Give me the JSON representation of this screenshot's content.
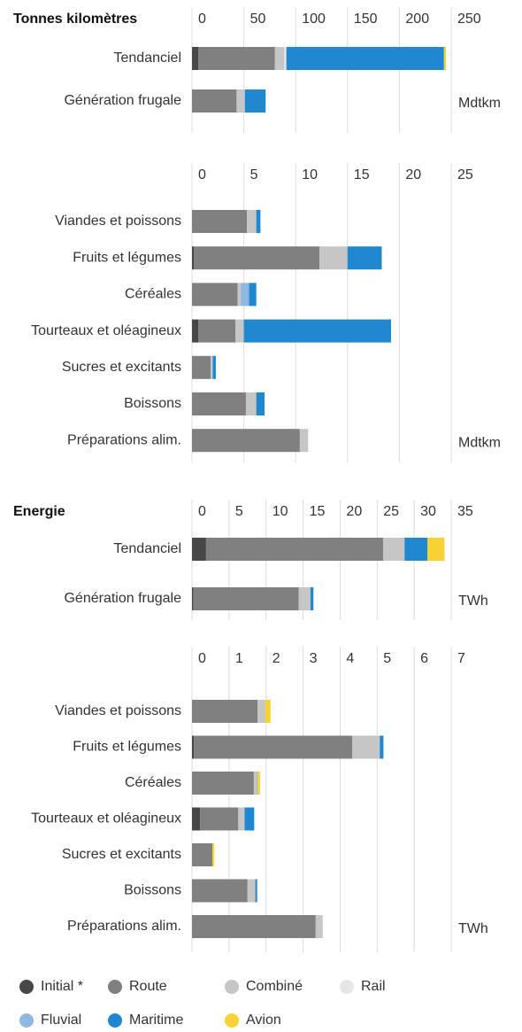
{
  "chart_data": [
    {
      "type": "bar",
      "orientation": "horizontal",
      "stacked": true,
      "title": "Tonnes kilomètres",
      "unit": "Mdtkm",
      "categories": [
        "Tendanciel",
        "Génération frugale"
      ],
      "xlim": [
        0,
        250
      ],
      "xticks": [
        0,
        50,
        100,
        150,
        200,
        250
      ],
      "grid": true,
      "series": [
        {
          "name": "Initial *",
          "color": "#474747",
          "values": [
            6,
            0
          ]
        },
        {
          "name": "Route",
          "color": "#808080",
          "values": [
            74,
            43
          ]
        },
        {
          "name": "Combiné",
          "color": "#c6c6c6",
          "values": [
            9,
            8
          ]
        },
        {
          "name": "Rail",
          "color": "#e6e6e6",
          "values": [
            2,
            0
          ]
        },
        {
          "name": "Fluvial",
          "color": "#8fb9e2",
          "values": [
            0,
            0
          ]
        },
        {
          "name": "Maritime",
          "color": "#1f88d1",
          "values": [
            152,
            20
          ]
        },
        {
          "name": "Avion",
          "color": "#f7d232",
          "values": [
            2,
            0
          ]
        }
      ]
    },
    {
      "type": "bar",
      "orientation": "horizontal",
      "stacked": true,
      "unit": "Mdtkm",
      "categories": [
        "Viandes et poissons",
        "Fruits et légumes",
        "Céréales",
        "Tourteaux et oléagineux",
        "Sucres et excitants",
        "Boissons",
        "Préparations alim."
      ],
      "xlim": [
        0,
        25
      ],
      "xticks": [
        0,
        5,
        10,
        15,
        20,
        25
      ],
      "grid": true,
      "series": [
        {
          "name": "Initial *",
          "color": "#474747",
          "values": [
            0,
            0.2,
            0,
            0.6,
            0,
            0,
            0
          ]
        },
        {
          "name": "Route",
          "color": "#808080",
          "values": [
            5.3,
            12.1,
            4.4,
            3.6,
            1.8,
            5.2,
            10.4
          ]
        },
        {
          "name": "Combiné",
          "color": "#c6c6c6",
          "values": [
            0.9,
            2.7,
            0.3,
            0.8,
            0.2,
            1.0,
            0.8
          ]
        },
        {
          "name": "Rail",
          "color": "#e6e6e6",
          "values": [
            0,
            0,
            0,
            0,
            0,
            0,
            0
          ]
        },
        {
          "name": "Fluvial",
          "color": "#8fb9e2",
          "values": [
            0,
            0,
            0.8,
            0,
            0,
            0,
            0
          ]
        },
        {
          "name": "Maritime",
          "color": "#1f88d1",
          "values": [
            0.4,
            3.3,
            0.7,
            14.2,
            0.3,
            0.8,
            0
          ]
        },
        {
          "name": "Avion",
          "color": "#f7d232",
          "values": [
            0,
            0,
            0,
            0,
            0,
            0,
            0
          ]
        }
      ]
    },
    {
      "type": "bar",
      "orientation": "horizontal",
      "stacked": true,
      "title": "Energie",
      "unit": "TWh",
      "categories": [
        "Tendanciel",
        "Génération frugale"
      ],
      "xlim": [
        0,
        35
      ],
      "xticks": [
        0,
        5,
        10,
        15,
        20,
        25,
        30,
        35
      ],
      "grid": true,
      "series": [
        {
          "name": "Initial *",
          "color": "#474747",
          "values": [
            1.9,
            0.2
          ]
        },
        {
          "name": "Route",
          "color": "#808080",
          "values": [
            23.9,
            14.2
          ]
        },
        {
          "name": "Combiné",
          "color": "#c6c6c6",
          "values": [
            2.9,
            1.6
          ]
        },
        {
          "name": "Rail",
          "color": "#e6e6e6",
          "values": [
            0,
            0
          ]
        },
        {
          "name": "Fluvial",
          "color": "#8fb9e2",
          "values": [
            0,
            0
          ]
        },
        {
          "name": "Maritime",
          "color": "#1f88d1",
          "values": [
            3.1,
            0.4
          ]
        },
        {
          "name": "Avion",
          "color": "#f7d232",
          "values": [
            2.3,
            0
          ]
        }
      ]
    },
    {
      "type": "bar",
      "orientation": "horizontal",
      "stacked": true,
      "unit": "TWh",
      "categories": [
        "Viandes et poissons",
        "Fruits et légumes",
        "Céréales",
        "Tourteaux et oléagineux",
        "Sucres et excitants",
        "Boissons",
        "Préparations alim."
      ],
      "xlim": [
        0,
        7
      ],
      "xticks": [
        0,
        1,
        2,
        3,
        4,
        5,
        6,
        7
      ],
      "grid": true,
      "series": [
        {
          "name": "Initial *",
          "color": "#474747",
          "values": [
            0,
            0.05,
            0,
            0.22,
            0,
            0,
            0
          ]
        },
        {
          "name": "Route",
          "color": "#808080",
          "values": [
            1.77,
            4.28,
            1.67,
            1.03,
            0.55,
            1.5,
            3.34
          ]
        },
        {
          "name": "Combiné",
          "color": "#c6c6c6",
          "values": [
            0.21,
            0.74,
            0.07,
            0.17,
            0,
            0.21,
            0.19
          ]
        },
        {
          "name": "Rail",
          "color": "#e6e6e6",
          "values": [
            0,
            0,
            0,
            0,
            0,
            0,
            0
          ]
        },
        {
          "name": "Fluvial",
          "color": "#8fb9e2",
          "values": [
            0,
            0,
            0.03,
            0,
            0,
            0,
            0
          ]
        },
        {
          "name": "Maritime",
          "color": "#1f88d1",
          "values": [
            0,
            0.1,
            0,
            0.26,
            0,
            0.05,
            0
          ]
        },
        {
          "name": "Avion",
          "color": "#f7d232",
          "values": [
            0.14,
            0,
            0.07,
            0,
            0.05,
            0,
            0
          ]
        }
      ]
    }
  ]
}
